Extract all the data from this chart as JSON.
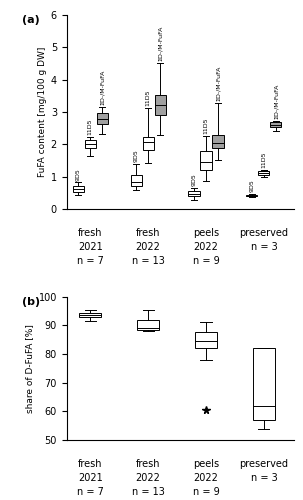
{
  "title_a": "(a)",
  "title_b": "(b)",
  "ylabel_a": "FuFA content [mg/100 g DW]",
  "ylabel_b": "share of D-FuFA [%]",
  "group_labels_top": [
    "fresh",
    "fresh",
    "peels",
    "preserved"
  ],
  "group_labels_year": [
    "2021",
    "2022",
    "2022",
    ""
  ],
  "group_labels_n": [
    "n = 7",
    "n = 13",
    "n = 9",
    "n = 3"
  ],
  "box_a": {
    "9D5": [
      {
        "whislo": 0.42,
        "q1": 0.52,
        "med": 0.62,
        "q3": 0.72,
        "whishi": 0.82
      },
      {
        "whislo": 0.58,
        "q1": 0.7,
        "med": 0.82,
        "q3": 1.05,
        "whishi": 1.38
      },
      {
        "whislo": 0.28,
        "q1": 0.4,
        "med": 0.47,
        "q3": 0.55,
        "whishi": 0.65
      },
      {
        "whislo": 0.36,
        "q1": 0.39,
        "med": 0.41,
        "q3": 0.44,
        "whishi": 0.47
      }
    ],
    "11D5": [
      {
        "whislo": 1.65,
        "q1": 1.88,
        "med": 2.0,
        "q3": 2.12,
        "whishi": 2.22
      },
      {
        "whislo": 1.42,
        "q1": 1.82,
        "med": 2.08,
        "q3": 2.22,
        "whishi": 3.12
      },
      {
        "whislo": 0.88,
        "q1": 1.22,
        "med": 1.45,
        "q3": 1.78,
        "whishi": 2.25
      },
      {
        "whislo": 0.98,
        "q1": 1.05,
        "med": 1.1,
        "q3": 1.18,
        "whishi": 1.22
      }
    ],
    "sum": [
      {
        "whislo": 2.32,
        "q1": 2.62,
        "med": 2.78,
        "q3": 2.98,
        "whishi": 3.15
      },
      {
        "whislo": 2.28,
        "q1": 2.92,
        "med": 3.22,
        "q3": 3.52,
        "whishi": 4.52
      },
      {
        "whislo": 1.52,
        "q1": 1.88,
        "med": 2.05,
        "q3": 2.28,
        "whishi": 3.28
      },
      {
        "whislo": 2.42,
        "q1": 2.52,
        "med": 2.6,
        "q3": 2.68,
        "whishi": 2.72
      }
    ]
  },
  "box_b": [
    {
      "whislo": 91.5,
      "q1": 93.0,
      "med": 93.5,
      "q3": 94.2,
      "whishi": 95.5
    },
    {
      "whislo": 88.0,
      "q1": 88.5,
      "med": 89.2,
      "q3": 92.0,
      "whishi": 95.5
    },
    {
      "whislo": 78.0,
      "q1": 82.0,
      "med": 84.5,
      "q3": 87.5,
      "whishi": 91.0
    },
    {
      "whislo": 54.0,
      "q1": 57.0,
      "med": 62.0,
      "q3": 82.0,
      "whishi": 82.0
    }
  ],
  "outliers_b": [
    [],
    [],
    [
      60.5
    ],
    []
  ],
  "color_white": "#ffffff",
  "color_gray": "#a0a0a0",
  "ylim_a": [
    0,
    6
  ],
  "ylim_b": [
    50,
    100
  ],
  "yticks_a": [
    0,
    1,
    2,
    3,
    4,
    5,
    6
  ],
  "yticks_b": [
    50,
    60,
    70,
    80,
    90,
    100
  ]
}
